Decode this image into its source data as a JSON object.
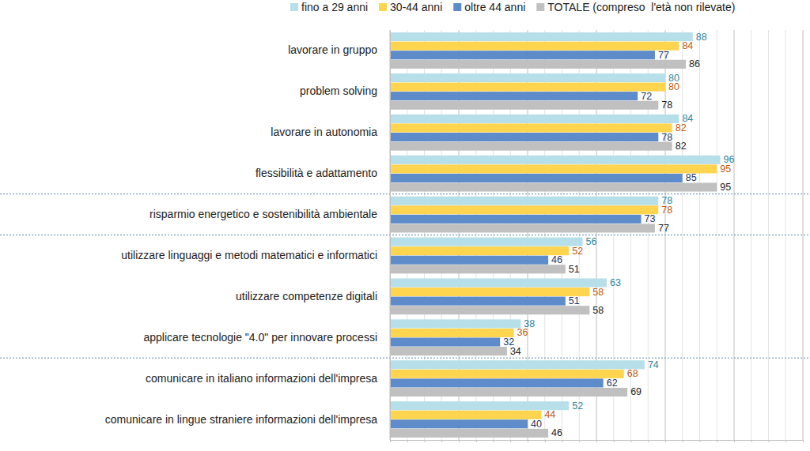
{
  "chart_data": {
    "type": "bar",
    "orientation": "horizontal",
    "data_labels": true,
    "grid": true,
    "tick_labels": "y",
    "legend": "top",
    "categories": [
      "lavorare in gruppo",
      "problem solving",
      "lavorare in autonomia",
      "flessibilità e adattamento",
      "risparmio energetico e sostenibilità ambientale",
      "utilizzare linguaggi e metodi matematici e informatici",
      "utilizzare competenze digitali",
      "applicare tecnologie \"4.0\" per innovare processi",
      "comunicare in italiano informazioni dell'impresa",
      "comunicare in lingue straniere informazioni dell'impresa"
    ],
    "series": [
      {
        "name": "fino a 29 anni",
        "color": "#b7dfea",
        "values": [
          88,
          80,
          84,
          96,
          78,
          56,
          63,
          38,
          74,
          52
        ]
      },
      {
        "name": "30-44 anni",
        "color": "#ffd54f",
        "values": [
          84,
          80,
          82,
          95,
          78,
          52,
          58,
          36,
          68,
          44
        ]
      },
      {
        "name": "oltre 44 anni",
        "color": "#5e8ccb",
        "values": [
          77,
          72,
          78,
          85,
          73,
          46,
          51,
          32,
          62,
          40
        ]
      },
      {
        "name": "TOTALE (compreso  l'età non rilevate)",
        "color": "#c0c0c0",
        "values": [
          86,
          78,
          82,
          95,
          77,
          51,
          58,
          34,
          69,
          46
        ]
      }
    ],
    "xlim": [
      0,
      120
    ],
    "xticks": [
      0,
      5,
      10,
      15,
      20,
      25,
      30,
      35,
      40,
      45,
      50,
      55,
      60,
      65,
      70,
      75,
      80,
      85,
      90,
      95,
      100,
      105,
      110,
      115,
      120
    ]
  }
}
